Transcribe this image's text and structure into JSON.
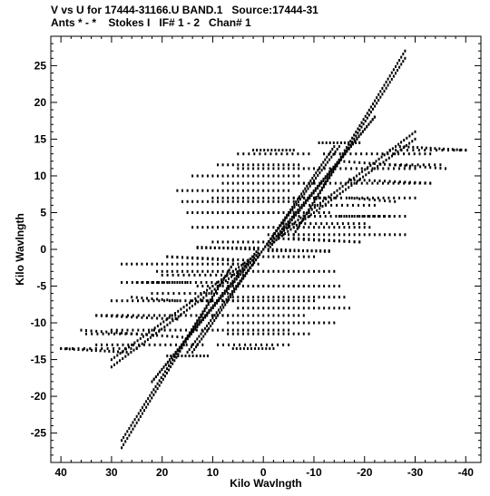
{
  "title_line1": "V vs U for 17444-31166.U BAND.1   Source:17444-31",
  "title_line2": "Ants * - *    Stokes I   IF# 1 - 2   Chan# 1",
  "chart_data": {
    "type": "scatter",
    "xlabel": "Kilo Wavlngth",
    "ylabel": "Kilo Wavlngth",
    "xlim": [
      42,
      -43
    ],
    "ylim": [
      -29,
      29
    ],
    "x_reversed": true,
    "x_ticks": [
      40,
      30,
      20,
      10,
      0,
      -10,
      -20,
      -30,
      -40
    ],
    "y_ticks": [
      25,
      20,
      15,
      10,
      5,
      0,
      -5,
      -10,
      -15,
      -20,
      -25
    ],
    "grid": false,
    "point_color": "#000000",
    "tracks": [
      {
        "start": [
          -6,
          2
        ],
        "end": [
          -28,
          27
        ],
        "points": 60
      },
      {
        "start": [
          -1,
          0.5
        ],
        "end": [
          -22,
          18
        ],
        "points": 55
      },
      {
        "start": [
          -3,
          2
        ],
        "end": [
          -30,
          16
        ],
        "points": 50
      },
      {
        "start": [
          0,
          0
        ],
        "end": [
          -15,
          14
        ],
        "points": 40
      },
      {
        "start": [
          2,
          13.5
        ],
        "end": [
          -6,
          13.5
        ],
        "points": 12
      },
      {
        "start": [
          -11,
          14.5
        ],
        "end": [
          -19,
          14.5
        ],
        "points": 12
      },
      {
        "start": [
          -27,
          14
        ],
        "end": [
          -40,
          13.5
        ],
        "points": 16
      },
      {
        "start": [
          5,
          11
        ],
        "end": [
          -9,
          11
        ],
        "points": 15
      },
      {
        "start": [
          -15,
          12
        ],
        "end": [
          -36,
          11
        ],
        "points": 22
      },
      {
        "start": [
          8,
          9
        ],
        "end": [
          -10,
          9
        ],
        "points": 19
      },
      {
        "start": [
          -17,
          9.5
        ],
        "end": [
          -33,
          9
        ],
        "points": 17
      },
      {
        "start": [
          10,
          7
        ],
        "end": [
          -12,
          7
        ],
        "points": 23
      },
      {
        "start": [
          -17,
          7
        ],
        "end": [
          -26,
          6.5
        ],
        "points": 10
      },
      {
        "start": [
          11,
          5
        ],
        "end": [
          -13,
          5
        ],
        "points": 25
      },
      {
        "start": [
          -15,
          4.5
        ],
        "end": [
          -25,
          4.5
        ],
        "points": 11
      },
      {
        "start": [
          -4,
          3
        ],
        "end": [
          -21,
          3
        ],
        "points": 18
      },
      {
        "start": [
          -2,
          1.5
        ],
        "end": [
          -19,
          1
        ],
        "points": 18
      },
      {
        "start": [
          13,
          0.2
        ],
        "end": [
          1,
          0.2
        ],
        "points": 15
      },
      {
        "start": [
          -1,
          0
        ],
        "end": [
          -13,
          -0.3
        ],
        "points": 15
      },
      {
        "start": [
          19,
          -1
        ],
        "end": [
          6,
          -1.5
        ],
        "points": 14
      },
      {
        "start": [
          1,
          -1
        ],
        "end": [
          -10,
          -1
        ],
        "points": 12
      },
      {
        "start": [
          28,
          -2
        ],
        "end": [
          1,
          -2
        ],
        "points": 28
      },
      {
        "start": [
          2,
          -3
        ],
        "end": [
          -14,
          -3
        ],
        "points": 17
      },
      {
        "start": [
          20,
          -3.5
        ],
        "end": [
          4,
          -3.5
        ],
        "points": 16
      },
      {
        "start": [
          28,
          -4.5
        ],
        "end": [
          6,
          -4.5
        ],
        "points": 22
      },
      {
        "start": [
          3,
          -5
        ],
        "end": [
          -15,
          -5
        ],
        "points": 19
      },
      {
        "start": [
          22,
          -6
        ],
        "end": [
          7,
          -6
        ],
        "points": 15
      },
      {
        "start": [
          6,
          -6.5
        ],
        "end": [
          -16,
          -6.5
        ],
        "points": 23
      },
      {
        "start": [
          30,
          -7
        ],
        "end": [
          6,
          -7
        ],
        "points": 24
      },
      {
        "start": [
          5,
          -8
        ],
        "end": [
          -17,
          -8
        ],
        "points": 23
      },
      {
        "start": [
          33,
          -9
        ],
        "end": [
          7,
          -9
        ],
        "points": 26
      },
      {
        "start": [
          7,
          -10
        ],
        "end": [
          -14,
          -10
        ],
        "points": 22
      },
      {
        "start": [
          30,
          -11
        ],
        "end": [
          10,
          -11
        ],
        "points": 20
      },
      {
        "start": [
          7,
          -11.5
        ],
        "end": [
          -9,
          -11.5
        ],
        "points": 17
      },
      {
        "start": [
          35,
          -11.5
        ],
        "end": [
          25,
          -11.5
        ],
        "points": 10
      },
      {
        "start": [
          33,
          -13
        ],
        "end": [
          12,
          -13
        ],
        "points": 21
      },
      {
        "start": [
          9,
          -13
        ],
        "end": [
          -5,
          -13
        ],
        "points": 14
      },
      {
        "start": [
          40,
          -13.5
        ],
        "end": [
          25,
          -13.5
        ],
        "points": 14
      },
      {
        "start": [
          1,
          0
        ],
        "end": [
          22,
          -18
        ],
        "points": 55
      },
      {
        "start": [
          6,
          -2
        ],
        "end": [
          28,
          -26
        ],
        "points": 60
      },
      {
        "start": [
          2,
          -1
        ],
        "end": [
          30,
          -15
        ],
        "points": 50
      },
      {
        "start": [
          0,
          0
        ],
        "end": [
          14,
          -14
        ],
        "points": 40
      }
    ]
  }
}
